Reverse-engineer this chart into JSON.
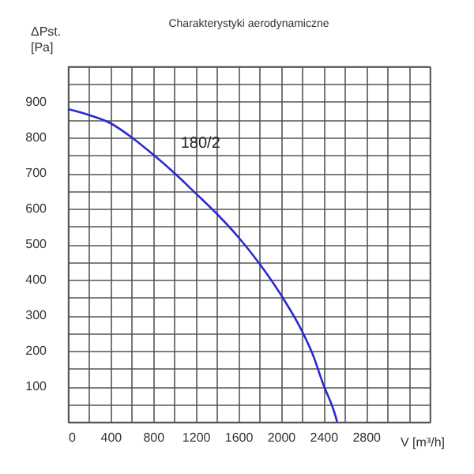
{
  "chart_data": {
    "type": "line",
    "title": "Charakterystyki aerodynamiczne",
    "xlabel": "V [m³/h]",
    "ylabel": "ΔPst.\n[Pa]",
    "x": [
      0,
      200,
      400,
      600,
      800,
      1000,
      1200,
      1400,
      1600,
      1800,
      2000,
      2200,
      2300,
      2400,
      2500,
      2530
    ],
    "series": [
      {
        "color": "#2a2ad0",
        "values": [
          880,
          863,
          840,
          800,
          752,
          700,
          643,
          585,
          520,
          445,
          358,
          255,
          190,
          105,
          30,
          0
        ]
      }
    ],
    "xlim": [
      0,
      3400
    ],
    "xticks": [
      0,
      {
        "value": 200,
        "label": null
      },
      400,
      {
        "value": 600,
        "label": null
      },
      800,
      {
        "value": 1000,
        "label": null
      },
      1200,
      {
        "value": 1400,
        "label": null
      },
      1600,
      {
        "value": 1800,
        "label": null
      },
      2000,
      {
        "value": 2200,
        "label": null
      },
      2400,
      {
        "value": 2600,
        "label": null
      },
      2800,
      {
        "value": 3000,
        "label": null
      },
      {
        "value": 3200,
        "label": null
      },
      {
        "value": 3400,
        "label": null
      }
    ],
    "ylim": [
      0,
      1000
    ],
    "yticks": [
      {
        "value": 0,
        "label": null
      },
      {
        "value": 50,
        "label": null
      },
      100,
      {
        "value": 150,
        "label": null
      },
      200,
      {
        "value": 250,
        "label": null
      },
      300,
      {
        "value": 350,
        "label": null
      },
      400,
      {
        "value": 450,
        "label": null
      },
      500,
      {
        "value": 550,
        "label": null
      },
      600,
      {
        "value": 650,
        "label": null
      },
      700,
      {
        "value": 750,
        "label": null
      },
      800,
      {
        "value": 850,
        "label": null
      },
      900,
      {
        "value": 950,
        "label": null
      },
      {
        "value": 1000,
        "label": null
      }
    ],
    "grid": true,
    "annotations": [
      {
        "text": "180/2",
        "x": 1000,
        "y": 700
      }
    ]
  }
}
